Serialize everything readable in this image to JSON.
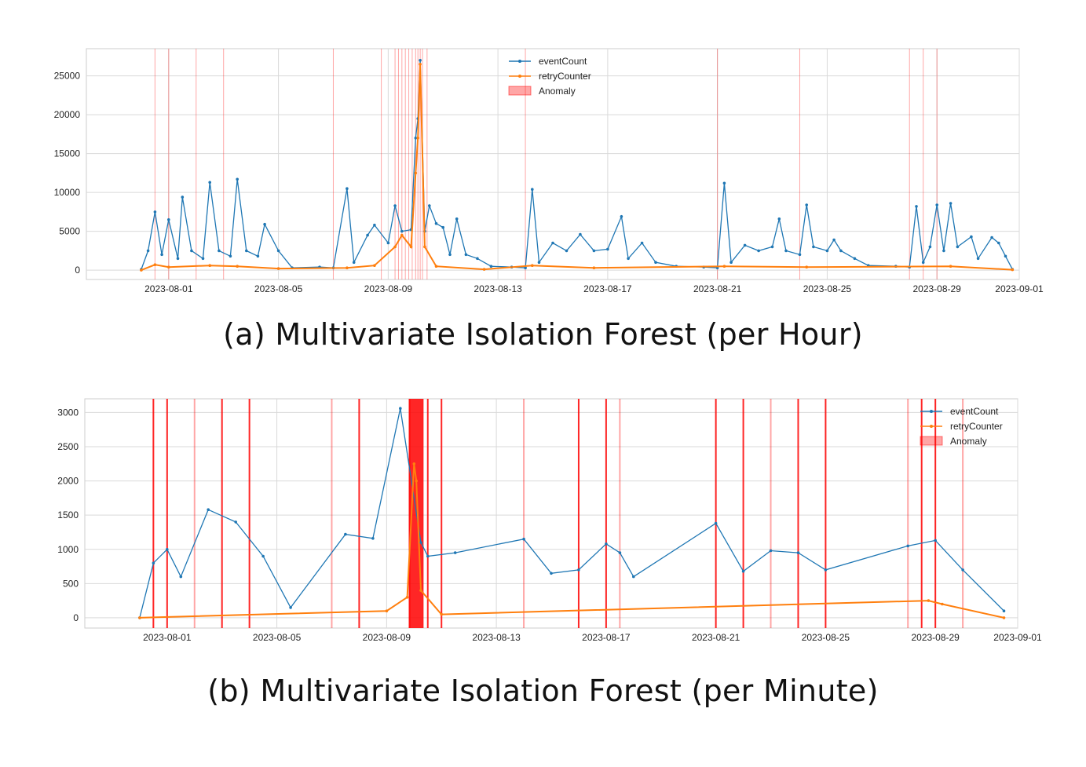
{
  "figure": {
    "captions": {
      "a": "(a) Multivariate Isolation Forest (per Hour)",
      "b": "(b) Multivariate Isolation Forest (per Minute)"
    },
    "colors": {
      "eventCount": "#1f77b4",
      "retryCounter": "#ff7f0e",
      "anomaly": "#ff0000",
      "grid": "#d9d9d9",
      "frame": "#cccccc"
    }
  },
  "chart_data": [
    {
      "id": "a",
      "type": "line",
      "title": "",
      "xlabel": "",
      "ylabel": "",
      "x_axis": "date",
      "xlim": [
        "2023-07-29",
        "2023-09-01"
      ],
      "ylim": [
        -1200,
        28500
      ],
      "grid": true,
      "legend_position": "top-center",
      "xticks": [
        "2023-08-01",
        "2023-08-05",
        "2023-08-09",
        "2023-08-13",
        "2023-08-17",
        "2023-08-21",
        "2023-08-25",
        "2023-08-29",
        "2023-09-01"
      ],
      "yticks": [
        0,
        5000,
        10000,
        15000,
        20000,
        25000
      ],
      "series": [
        {
          "name": "eventCount",
          "points": [
            [
              "2023-07-31 00:00",
              100
            ],
            [
              "2023-07-31 06:00",
              2500
            ],
            [
              "2023-07-31 12:00",
              7500
            ],
            [
              "2023-07-31 18:00",
              2000
            ],
            [
              "2023-08-01 00:00",
              6500
            ],
            [
              "2023-08-01 08:00",
              1500
            ],
            [
              "2023-08-01 12:00",
              9400
            ],
            [
              "2023-08-01 20:00",
              2500
            ],
            [
              "2023-08-02 06:00",
              1500
            ],
            [
              "2023-08-02 12:00",
              11300
            ],
            [
              "2023-08-02 20:00",
              2500
            ],
            [
              "2023-08-03 06:00",
              1800
            ],
            [
              "2023-08-03 12:00",
              11700
            ],
            [
              "2023-08-03 20:00",
              2500
            ],
            [
              "2023-08-04 06:00",
              1800
            ],
            [
              "2023-08-04 12:00",
              5900
            ],
            [
              "2023-08-05 00:00",
              2500
            ],
            [
              "2023-08-05 12:00",
              300
            ],
            [
              "2023-08-06 12:00",
              400
            ],
            [
              "2023-08-07 00:00",
              300
            ],
            [
              "2023-08-07 12:00",
              10500
            ],
            [
              "2023-08-07 18:00",
              1000
            ],
            [
              "2023-08-08 06:00",
              4500
            ],
            [
              "2023-08-08 12:00",
              5800
            ],
            [
              "2023-08-09 00:00",
              3500
            ],
            [
              "2023-08-09 06:00",
              8300
            ],
            [
              "2023-08-09 12:00",
              5000
            ],
            [
              "2023-08-09 20:00",
              5200
            ],
            [
              "2023-08-10 00:00",
              17000
            ],
            [
              "2023-08-10 02:00",
              19500
            ],
            [
              "2023-08-10 04:00",
              27000
            ],
            [
              "2023-08-10 08:00",
              5000
            ],
            [
              "2023-08-10 12:00",
              8300
            ],
            [
              "2023-08-10 18:00",
              6000
            ],
            [
              "2023-08-11 00:00",
              5500
            ],
            [
              "2023-08-11 06:00",
              2000
            ],
            [
              "2023-08-11 12:00",
              6600
            ],
            [
              "2023-08-11 20:00",
              2000
            ],
            [
              "2023-08-12 06:00",
              1500
            ],
            [
              "2023-08-12 18:00",
              500
            ],
            [
              "2023-08-13 12:00",
              400
            ],
            [
              "2023-08-14 00:00",
              300
            ],
            [
              "2023-08-14 06:00",
              10400
            ],
            [
              "2023-08-14 12:00",
              1000
            ],
            [
              "2023-08-15 00:00",
              3500
            ],
            [
              "2023-08-15 12:00",
              2500
            ],
            [
              "2023-08-16 00:00",
              4600
            ],
            [
              "2023-08-16 12:00",
              2500
            ],
            [
              "2023-08-17 00:00",
              2700
            ],
            [
              "2023-08-17 12:00",
              6900
            ],
            [
              "2023-08-17 18:00",
              1500
            ],
            [
              "2023-08-18 06:00",
              3500
            ],
            [
              "2023-08-18 18:00",
              1000
            ],
            [
              "2023-08-19 12:00",
              500
            ],
            [
              "2023-08-20 12:00",
              400
            ],
            [
              "2023-08-21 00:00",
              300
            ],
            [
              "2023-08-21 06:00",
              11200
            ],
            [
              "2023-08-21 12:00",
              1000
            ],
            [
              "2023-08-22 00:00",
              3200
            ],
            [
              "2023-08-22 12:00",
              2500
            ],
            [
              "2023-08-23 00:00",
              3000
            ],
            [
              "2023-08-23 06:00",
              6600
            ],
            [
              "2023-08-23 12:00",
              2500
            ],
            [
              "2023-08-24 00:00",
              2000
            ],
            [
              "2023-08-24 06:00",
              8400
            ],
            [
              "2023-08-24 12:00",
              3000
            ],
            [
              "2023-08-25 00:00",
              2500
            ],
            [
              "2023-08-25 06:00",
              3900
            ],
            [
              "2023-08-25 12:00",
              2500
            ],
            [
              "2023-08-26 00:00",
              1500
            ],
            [
              "2023-08-26 12:00",
              600
            ],
            [
              "2023-08-27 12:00",
              500
            ],
            [
              "2023-08-28 00:00",
              400
            ],
            [
              "2023-08-28 06:00",
              8200
            ],
            [
              "2023-08-28 12:00",
              1000
            ],
            [
              "2023-08-28 18:00",
              3000
            ],
            [
              "2023-08-29 00:00",
              8400
            ],
            [
              "2023-08-29 06:00",
              2500
            ],
            [
              "2023-08-29 12:00",
              8600
            ],
            [
              "2023-08-29 18:00",
              3000
            ],
            [
              "2023-08-30 06:00",
              4300
            ],
            [
              "2023-08-30 12:00",
              1500
            ],
            [
              "2023-08-31 00:00",
              4200
            ],
            [
              "2023-08-31 06:00",
              3500
            ],
            [
              "2023-08-31 12:00",
              1800
            ],
            [
              "2023-08-31 18:00",
              100
            ]
          ]
        },
        {
          "name": "retryCounter",
          "points": [
            [
              "2023-07-31 00:00",
              0
            ],
            [
              "2023-07-31 12:00",
              700
            ],
            [
              "2023-08-01 00:00",
              400
            ],
            [
              "2023-08-02 12:00",
              600
            ],
            [
              "2023-08-03 12:00",
              500
            ],
            [
              "2023-08-05 00:00",
              200
            ],
            [
              "2023-08-07 12:00",
              300
            ],
            [
              "2023-08-08 12:00",
              600
            ],
            [
              "2023-08-09 06:00",
              3000
            ],
            [
              "2023-08-09 12:00",
              4500
            ],
            [
              "2023-08-09 20:00",
              3000
            ],
            [
              "2023-08-10 00:00",
              12500
            ],
            [
              "2023-08-10 02:00",
              17000
            ],
            [
              "2023-08-10 04:00",
              26500
            ],
            [
              "2023-08-10 08:00",
              3000
            ],
            [
              "2023-08-10 18:00",
              500
            ],
            [
              "2023-08-12 12:00",
              100
            ],
            [
              "2023-08-14 06:00",
              600
            ],
            [
              "2023-08-16 12:00",
              300
            ],
            [
              "2023-08-21 06:00",
              500
            ],
            [
              "2023-08-24 06:00",
              400
            ],
            [
              "2023-08-29 12:00",
              500
            ],
            [
              "2023-08-31 18:00",
              50
            ]
          ]
        }
      ],
      "anomaly_dates": [
        "2023-07-31 12:00",
        "2023-08-01 00:00",
        "2023-08-02 00:00",
        "2023-08-03 00:00",
        "2023-08-07 00:00",
        "2023-08-08 18:00",
        "2023-08-09 06:00",
        "2023-08-09 09:00",
        "2023-08-09 12:00",
        "2023-08-09 15:00",
        "2023-08-09 18:00",
        "2023-08-09 21:00",
        "2023-08-10 00:00",
        "2023-08-10 02:00",
        "2023-08-10 04:00",
        "2023-08-10 06:00",
        "2023-08-10 10:00",
        "2023-08-14 00:00",
        "2023-08-21 00:00",
        "2023-08-24 00:00",
        "2023-08-28 00:00",
        "2023-08-28 12:00",
        "2023-08-29 00:00"
      ],
      "legend": [
        "eventCount",
        "retryCounter",
        "Anomaly"
      ]
    },
    {
      "id": "b",
      "type": "line",
      "title": "",
      "xlabel": "",
      "ylabel": "",
      "x_axis": "date",
      "xlim": [
        "2023-07-29",
        "2023-09-01"
      ],
      "ylim": [
        -150,
        3200
      ],
      "grid": true,
      "legend_position": "top-right",
      "xticks": [
        "2023-08-01",
        "2023-08-05",
        "2023-08-09",
        "2023-08-13",
        "2023-08-17",
        "2023-08-21",
        "2023-08-25",
        "2023-08-29",
        "2023-09-01"
      ],
      "yticks": [
        0,
        500,
        1000,
        1500,
        2000,
        2500,
        3000
      ],
      "series": [
        {
          "name": "eventCount",
          "points": [
            [
              "2023-07-31 00:00",
              0
            ],
            [
              "2023-07-31 12:00",
              800
            ],
            [
              "2023-08-01 00:00",
              1000
            ],
            [
              "2023-08-01 12:00",
              600
            ],
            [
              "2023-08-02 12:00",
              1580
            ],
            [
              "2023-08-03 12:00",
              1400
            ],
            [
              "2023-08-04 12:00",
              900
            ],
            [
              "2023-08-05 12:00",
              150
            ],
            [
              "2023-08-07 12:00",
              1220
            ],
            [
              "2023-08-08 12:00",
              1160
            ],
            [
              "2023-08-09 12:00",
              3060
            ],
            [
              "2023-08-10 06:00",
              1100
            ],
            [
              "2023-08-10 12:00",
              900
            ],
            [
              "2023-08-11 12:00",
              950
            ],
            [
              "2023-08-14 00:00",
              1150
            ],
            [
              "2023-08-15 00:00",
              650
            ],
            [
              "2023-08-16 00:00",
              700
            ],
            [
              "2023-08-17 00:00",
              1080
            ],
            [
              "2023-08-17 12:00",
              950
            ],
            [
              "2023-08-18 00:00",
              600
            ],
            [
              "2023-08-21 00:00",
              1380
            ],
            [
              "2023-08-22 00:00",
              680
            ],
            [
              "2023-08-23 00:00",
              980
            ],
            [
              "2023-08-24 00:00",
              950
            ],
            [
              "2023-08-25 00:00",
              700
            ],
            [
              "2023-08-28 00:00",
              1050
            ],
            [
              "2023-08-29 00:00",
              1130
            ],
            [
              "2023-08-30 00:00",
              700
            ],
            [
              "2023-08-31 12:00",
              100
            ]
          ]
        },
        {
          "name": "retryCounter",
          "points": [
            [
              "2023-07-31 00:00",
              0
            ],
            [
              "2023-08-09 00:00",
              100
            ],
            [
              "2023-08-09 18:00",
              300
            ],
            [
              "2023-08-10 00:00",
              2250
            ],
            [
              "2023-08-10 02:00",
              2000
            ],
            [
              "2023-08-10 06:00",
              400
            ],
            [
              "2023-08-11 00:00",
              50
            ],
            [
              "2023-08-28 18:00",
              250
            ],
            [
              "2023-08-29 06:00",
              200
            ],
            [
              "2023-08-31 12:00",
              0
            ]
          ]
        }
      ],
      "anomaly_dates": [
        "2023-07-31 12:00",
        "2023-08-01 00:00",
        "2023-08-02 00:00",
        "2023-08-03 00:00",
        "2023-08-04 00:00",
        "2023-08-07 00:00",
        "2023-08-08 00:00",
        "2023-08-09 20:00",
        "2023-08-10 08:00",
        "2023-08-10 12:00",
        "2023-08-11 00:00",
        "2023-08-14 00:00",
        "2023-08-16 00:00",
        "2023-08-17 00:00",
        "2023-08-17 12:00",
        "2023-08-21 00:00",
        "2023-08-22 00:00",
        "2023-08-23 00:00",
        "2023-08-24 00:00",
        "2023-08-25 00:00",
        "2023-08-28 00:00",
        "2023-08-28 12:00",
        "2023-08-29 00:00",
        "2023-08-30 00:00"
      ],
      "anomaly_bands": [
        [
          "2023-08-09 20:00",
          "2023-08-10 08:00"
        ]
      ],
      "legend": [
        "eventCount",
        "retryCounter",
        "Anomaly"
      ]
    }
  ]
}
